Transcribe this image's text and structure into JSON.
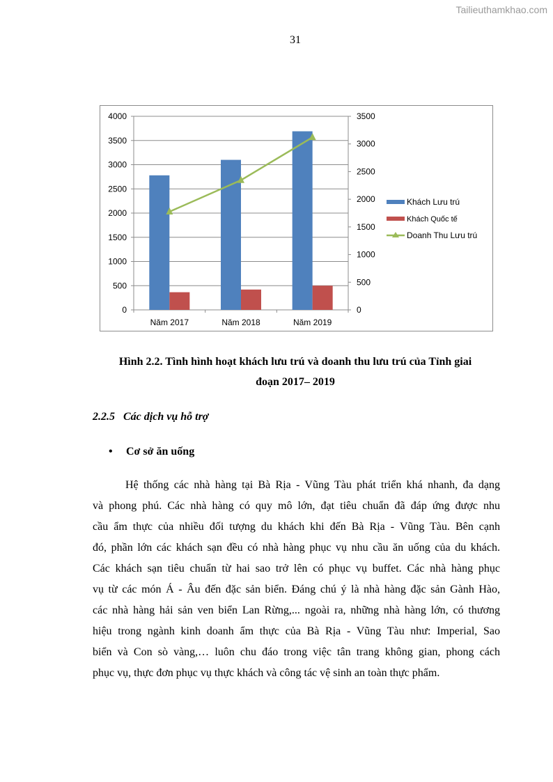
{
  "watermark": "Tailieuthamkhao.com",
  "page_number": "31",
  "chart_data": {
    "type": "bar+line",
    "categories": [
      "Năm 2017",
      "Năm 2018",
      "Năm 2019"
    ],
    "series": [
      {
        "name": "Khách Lưu trú",
        "type": "bar",
        "axis": "left",
        "color": "#4f81bd",
        "values": [
          2780,
          3100,
          3690
        ]
      },
      {
        "name": "Khách Quốc tế",
        "type": "bar",
        "axis": "left",
        "color": "#c0504d",
        "values": [
          365,
          420,
          500
        ]
      },
      {
        "name": "Doanh Thu Lưu trú",
        "type": "line",
        "axis": "right",
        "marker": "triangle",
        "color": "#9bbb59",
        "values": [
          1775,
          2345,
          3120
        ]
      }
    ],
    "ylim_left": [
      0,
      4000
    ],
    "yticks_left": [
      0,
      500,
      1000,
      1500,
      2000,
      2500,
      3000,
      3500,
      4000
    ],
    "ylim_right": [
      0,
      3500
    ],
    "yticks_right": [
      0,
      500,
      1000,
      1500,
      2000,
      2500,
      3000,
      3500
    ],
    "grid": true,
    "legend": "right"
  },
  "caption": [
    "Hình 2.2. Tình hình hoạt khách lưu trú và doanh thu lưu trú của Tỉnh giai",
    "đoạn 2017– 2019"
  ],
  "section_heading": "2.2.5   Các dịch vụ hỗ trợ",
  "bullet": {
    "symbol": "•",
    "text": "Cơ sở ăn uống"
  },
  "paragraph": [
    "Hệ thống các nhà hàng tại Bà Rịa - Vũng Tàu phát triển khá nhanh, đa dạng",
    "và phong phú. Các nhà hàng có quy mô lớn, đạt tiêu chuẩn đã đáp ứng được nhu",
    "cầu ẩm thực của nhiều đối tượng du khách khi đến Bà Rịa - Vũng Tàu. Bên cạnh",
    "đó, phần lớn các khách sạn đều có nhà hàng phục vụ nhu cầu ăn uống của du khách.",
    "Các khách sạn tiêu chuẩn từ hai sao trở lên có phục vụ buffet. Các nhà hàng phục",
    "vụ từ các món Á - Âu đến đặc sản biển. Đáng chú ý là nhà hàng đặc sản Gành Hào,",
    "các nhà hàng hải sản ven biển Lan Rừng,... ngoài ra, những nhà hàng lớn, có thương",
    "hiệu trong ngành kinh doanh ẩm thực của Bà Rịa - Vũng Tàu như: Imperial, Sao",
    "biển và Con sò vàng,… luôn chu đáo trong việc tân trang không gian, phong cách",
    "phục vụ, thực đơn phục vụ thực khách và công tác vệ sinh an toàn thực phẩm."
  ]
}
